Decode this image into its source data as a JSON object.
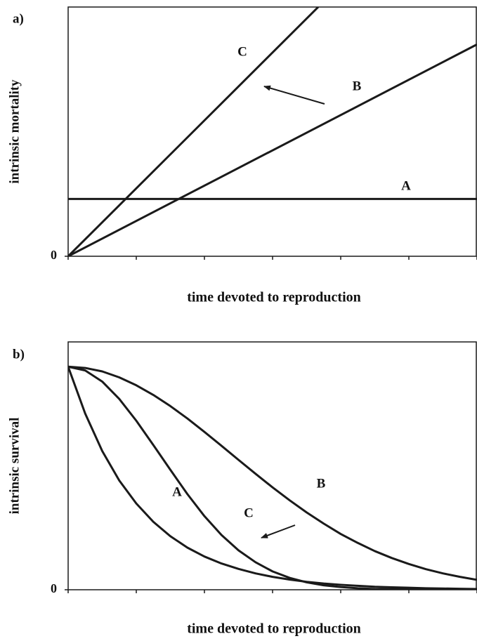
{
  "chart_data": [
    {
      "type": "line",
      "panel_label": "a)",
      "ylabel": "intrinsic mortality",
      "xlabel": "time devoted to reproduction",
      "xlim": [
        0,
        6
      ],
      "xticks": [
        0,
        1,
        2,
        3,
        4,
        5,
        6
      ],
      "ylim": [
        0,
        10
      ],
      "yticks": [
        0
      ],
      "series": [
        {
          "name": "A",
          "color": "#1a1a1a",
          "x": [
            0,
            6
          ],
          "values": [
            2.3,
            2.3
          ]
        },
        {
          "name": "B",
          "color": "#1a1a1a",
          "x": [
            0,
            6
          ],
          "values": [
            0,
            8.5
          ]
        },
        {
          "name": "C",
          "color": "#1a1a1a",
          "x": [
            0,
            3.67
          ],
          "values": [
            0,
            10
          ]
        }
      ]
    },
    {
      "type": "line",
      "panel_label": "b)",
      "ylabel": "intrinsic survival",
      "xlabel": "time devoted to reproduction",
      "xlim": [
        0,
        6
      ],
      "xticks": [
        0,
        1,
        2,
        3,
        4,
        5,
        6
      ],
      "ylim": [
        0,
        10
      ],
      "yticks": [
        0
      ],
      "x": [
        0,
        0.25,
        0.5,
        0.75,
        1,
        1.25,
        1.5,
        1.75,
        2,
        2.25,
        2.5,
        2.75,
        3,
        3.25,
        3.5,
        3.75,
        4,
        4.25,
        4.5,
        4.75,
        5,
        5.25,
        5.5,
        5.75,
        6
      ],
      "series": [
        {
          "name": "A",
          "color": "#1a1a1a",
          "values": [
            9,
            7.11,
            5.6,
            4.41,
            3.48,
            2.74,
            2.16,
            1.7,
            1.34,
            1.06,
            0.84,
            0.66,
            0.52,
            0.41,
            0.32,
            0.25,
            0.2,
            0.16,
            0.12,
            0.1,
            0.08,
            0.06,
            0.05,
            0.04,
            0.03
          ]
        },
        {
          "name": "B",
          "color": "#1a1a1a",
          "values": [
            9,
            8.95,
            8.81,
            8.57,
            8.25,
            7.86,
            7.41,
            6.91,
            6.37,
            5.81,
            5.24,
            4.68,
            4.13,
            3.61,
            3.12,
            2.67,
            2.25,
            1.89,
            1.56,
            1.28,
            1.04,
            0.83,
            0.66,
            0.52,
            0.4
          ]
        },
        {
          "name": "C",
          "color": "#1a1a1a",
          "values": [
            9,
            8.85,
            8.4,
            7.7,
            6.82,
            5.84,
            4.84,
            3.86,
            2.97,
            2.21,
            1.59,
            1.11,
            0.74,
            0.48,
            0.3,
            0.18,
            0.11,
            0.06,
            0.03,
            0.02,
            0.01,
            0,
            0,
            0,
            0
          ]
        }
      ]
    }
  ]
}
